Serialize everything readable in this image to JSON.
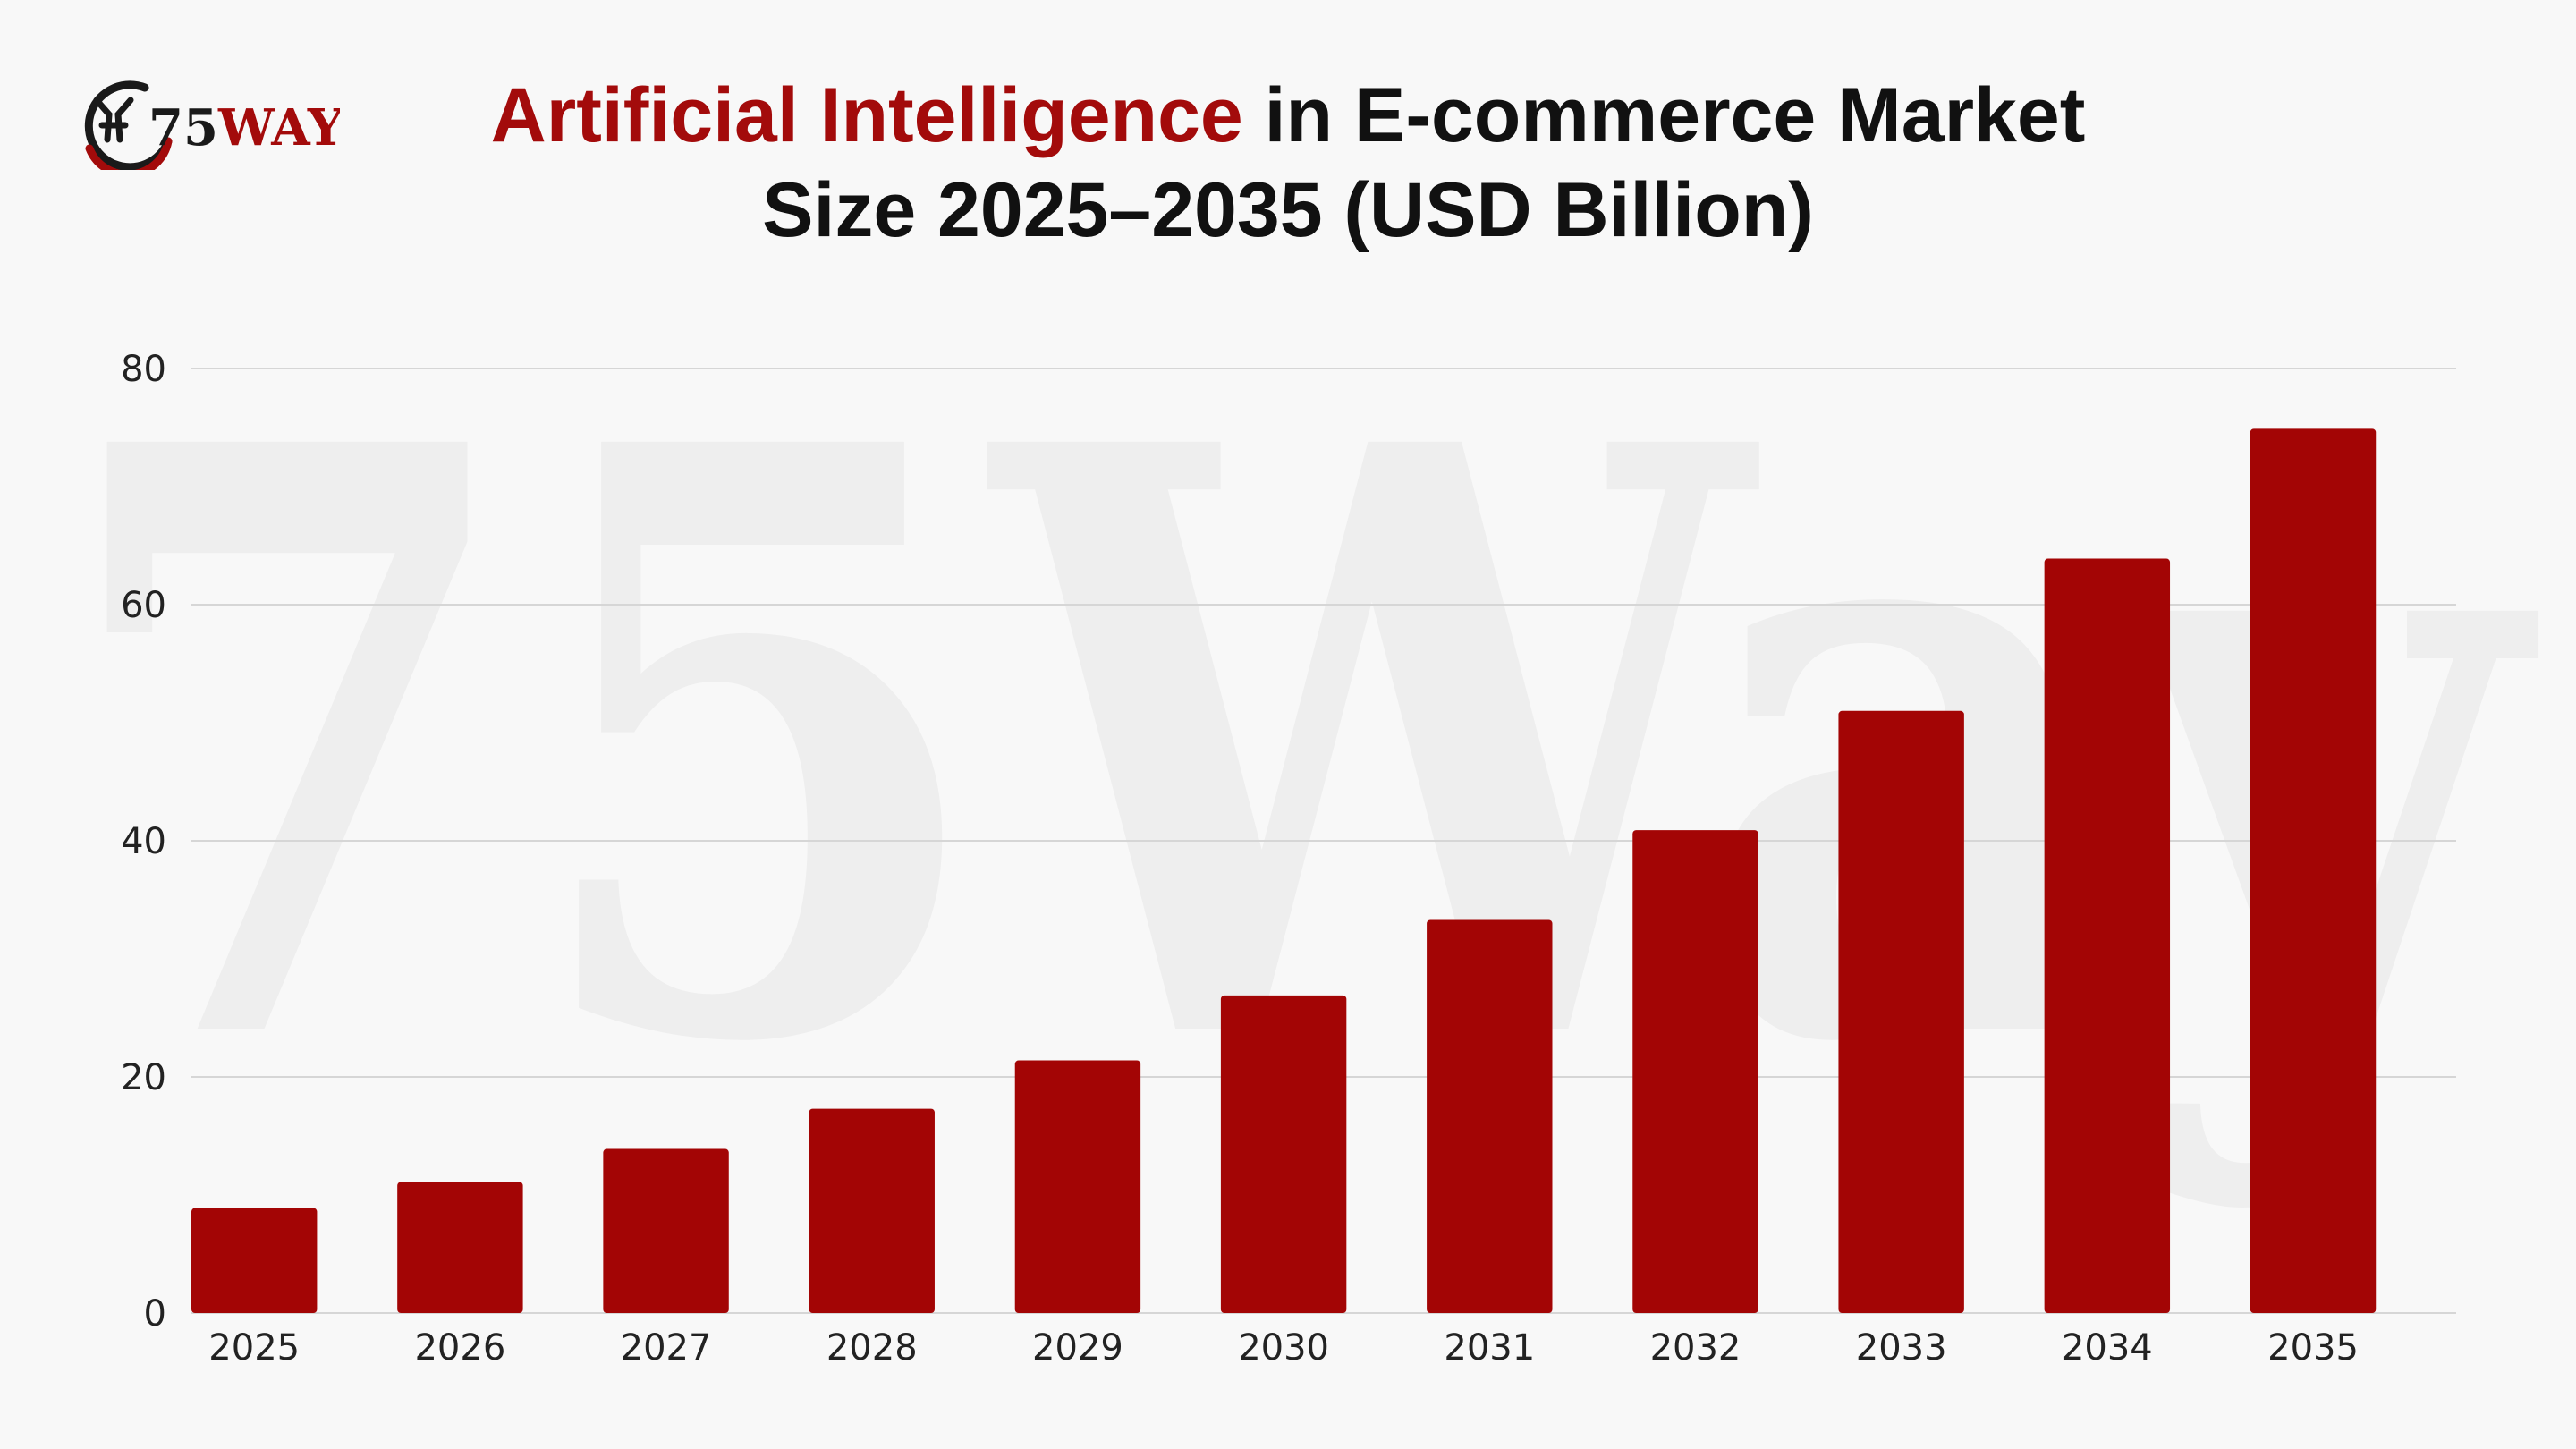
{
  "brand": {
    "logo_num": "75",
    "logo_word": "WAY",
    "watermark": "75Way"
  },
  "title": {
    "highlight": "Artificial Intelligence",
    "rest": " in E-commerce Market",
    "line2": "Size 2025–2035 (USD Billion)"
  },
  "colors": {
    "bar": "#a30505",
    "title_highlight": "#a30b0b",
    "grid": "#d6d6d6",
    "background": "#f8f8f8"
  },
  "chart_data": {
    "type": "bar",
    "title": "Artificial Intelligence in E-commerce Market Size 2025–2035 (USD Billion)",
    "xlabel": "",
    "ylabel": "",
    "categories": [
      "2025",
      "2026",
      "2027",
      "2028",
      "2029",
      "2030",
      "2031",
      "2032",
      "2033",
      "2034",
      "2035"
    ],
    "values": [
      8.9,
      11.1,
      13.9,
      17.3,
      21.4,
      26.9,
      33.3,
      40.9,
      51.0,
      63.9,
      74.9
    ],
    "ylim": [
      0,
      80
    ],
    "yticks": [
      0,
      20,
      40,
      60,
      80
    ],
    "ytick_labels": [
      "0",
      "20",
      "40",
      "60",
      "80"
    ],
    "grid": true,
    "legend": "none"
  }
}
